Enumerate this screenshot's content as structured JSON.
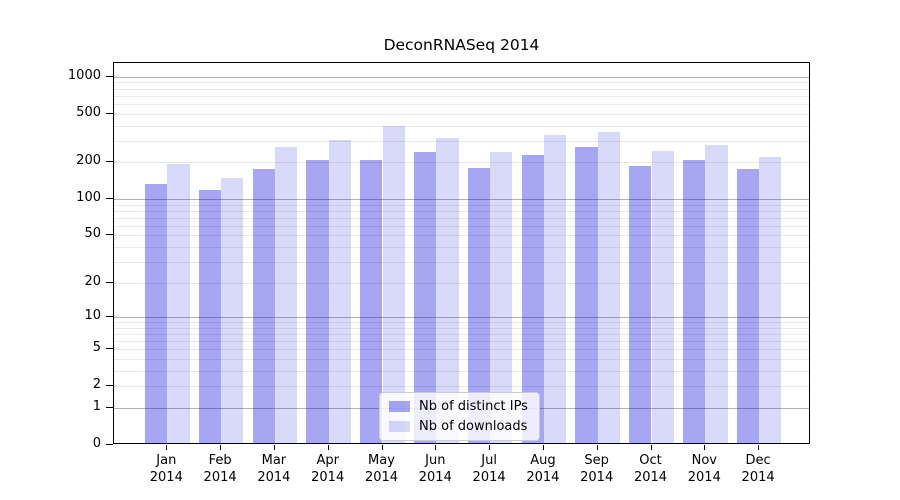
{
  "title": "DeconRNASeq 2014",
  "chart_data": {
    "type": "bar",
    "title": "DeconRNASeq 2014",
    "xlabel": "",
    "ylabel": "",
    "categories": [
      "Jan",
      "Feb",
      "Mar",
      "Apr",
      "May",
      "Jun",
      "Jul",
      "Aug",
      "Sep",
      "Oct",
      "Nov",
      "Dec"
    ],
    "category_year": "2014",
    "series": [
      {
        "name": "Nb of distinct IPs",
        "color": "#0000dc",
        "alpha": 0.35,
        "values": [
          133,
          119,
          176,
          209,
          208,
          244,
          179,
          229,
          265,
          186,
          210,
          175
        ]
      },
      {
        "name": "Nb of downloads",
        "color": "#0000dc",
        "alpha": 0.15,
        "values": [
          195,
          149,
          265,
          302,
          393,
          316,
          242,
          336,
          353,
          246,
          277,
          223
        ]
      }
    ],
    "y_axis": {
      "scale": "log10(1+x)",
      "tick_values": [
        1000,
        500,
        200,
        100,
        50,
        20,
        10,
        5,
        2,
        1,
        0
      ],
      "tick_labels": [
        "1000",
        "500",
        "200",
        "100",
        "50",
        "20",
        "10",
        "5",
        "2",
        "1",
        "0"
      ],
      "minor_grid_values": [
        2,
        3,
        4,
        5,
        6,
        7,
        8,
        9,
        20,
        30,
        40,
        50,
        60,
        70,
        80,
        90,
        200,
        300,
        400,
        500,
        600,
        700,
        800,
        900
      ],
      "major_grid_values": [
        1,
        10,
        100,
        1000
      ]
    },
    "ylim": [
      0,
      1300
    ],
    "grid": {
      "major_color": "#b3b3b3",
      "minor_color": "#e9e9e9"
    },
    "legend": {
      "position": "bottom-center"
    }
  }
}
